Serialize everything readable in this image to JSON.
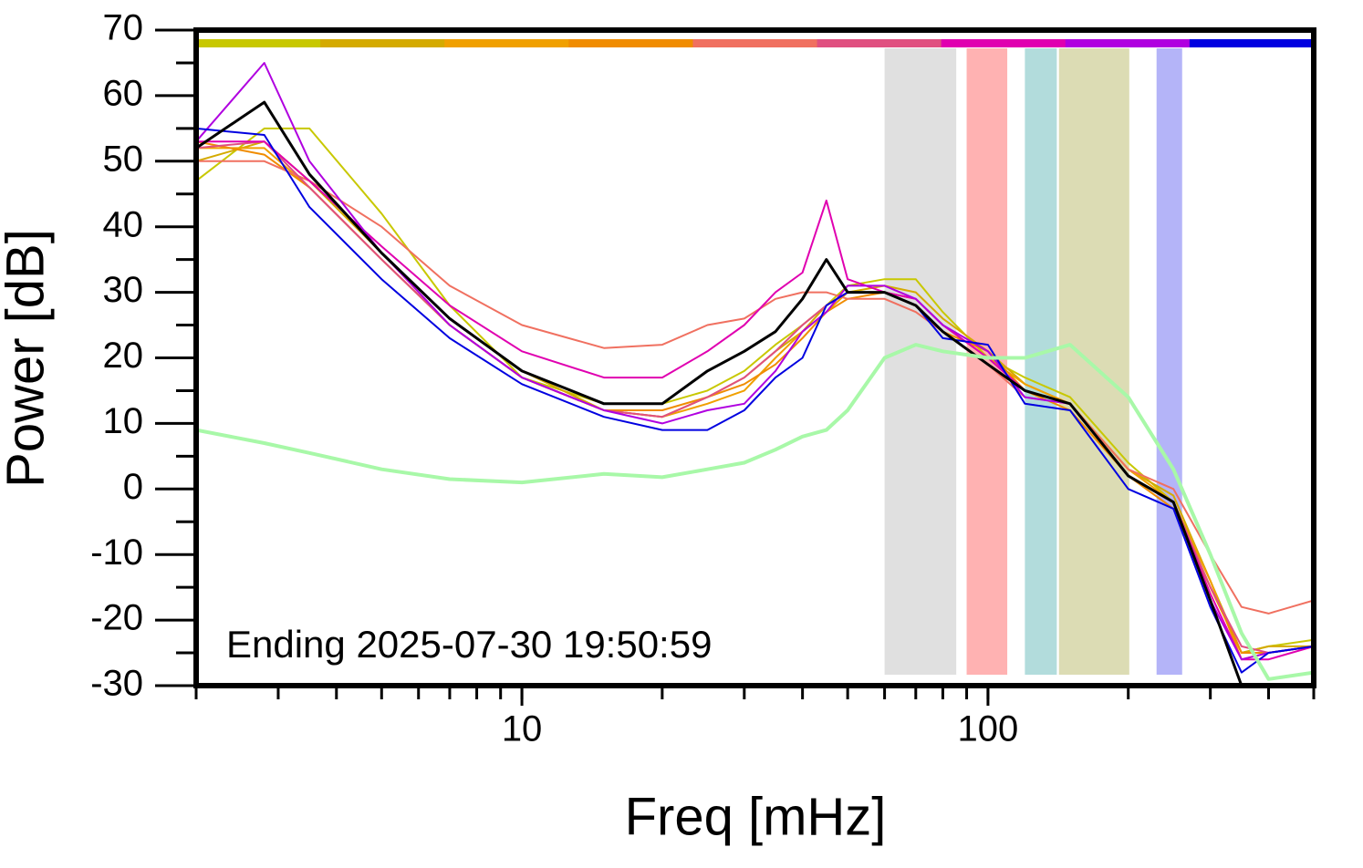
{
  "chart_data": {
    "type": "line",
    "ylabel": "Power [dB]",
    "xlabel": "Freq [mHz]",
    "annotation": "Ending 2025-07-30 19:50:59",
    "xscale": "log",
    "xlim": [
      2,
      500
    ],
    "ylim": [
      -30,
      70
    ],
    "xticks": [
      10,
      100
    ],
    "yticks": [
      -30,
      -20,
      -10,
      0,
      10,
      20,
      30,
      40,
      50,
      60,
      70
    ],
    "x": [
      2,
      2.8,
      3.5,
      5,
      7,
      10,
      15,
      20,
      25,
      30,
      35,
      40,
      45,
      50,
      60,
      70,
      80,
      100,
      120,
      150,
      200,
      250,
      300,
      350,
      400,
      500
    ],
    "bands": [
      {
        "x": [
          60,
          85.5
        ],
        "color": "#e0e0e0"
      },
      {
        "x": [
          90,
          110
        ],
        "color": "#ffb2b2"
      },
      {
        "x": [
          120,
          140.5
        ],
        "color": "#b2dcdc"
      },
      {
        "x": [
          142,
          201
        ],
        "color": "#dcdcb4"
      },
      {
        "x": [
          230,
          261
        ],
        "color": "#b4b4f8"
      }
    ],
    "series": [
      {
        "color": "#c8c800",
        "values": [
          47,
          55,
          55,
          42,
          28,
          17,
          13,
          13,
          15,
          18,
          22,
          25,
          28,
          31,
          32,
          32,
          27,
          20,
          17,
          14,
          4,
          -2,
          -15,
          -25,
          -24,
          -23
        ]
      },
      {
        "color": "#d4aa00",
        "values": [
          50,
          53,
          47,
          36,
          26,
          18,
          12,
          11,
          14,
          17,
          21,
          24,
          28,
          30,
          31,
          30,
          26,
          21,
          16,
          13,
          3,
          -1,
          -14,
          -25,
          -24,
          -24
        ]
      },
      {
        "color": "#f0a000",
        "values": [
          52,
          52,
          46,
          35,
          25,
          17,
          12,
          11,
          13,
          15,
          20,
          24,
          27,
          30,
          30,
          29,
          25,
          20,
          16,
          13,
          3,
          -2,
          -14,
          -26,
          -25,
          -24
        ]
      },
      {
        "color": "#f08c00",
        "values": [
          53,
          51,
          46,
          35,
          25,
          17,
          12,
          12,
          14,
          16,
          19,
          23,
          27,
          29,
          30,
          28,
          24,
          21,
          15,
          12,
          2,
          -3,
          -15,
          -25,
          -25,
          -24
        ]
      },
      {
        "color": "#f07060",
        "values": [
          50,
          50,
          47,
          40,
          31,
          25,
          21.5,
          22,
          25,
          26,
          29,
          30,
          30,
          29,
          29,
          27,
          24,
          19,
          14,
          13,
          3,
          0,
          -10,
          -18,
          -19,
          -17
        ]
      },
      {
        "color": "#e05080",
        "values": [
          52,
          53,
          46,
          35,
          25,
          17,
          12,
          11,
          14,
          17,
          21,
          25,
          28,
          30,
          30,
          29,
          25,
          20,
          15,
          13,
          2,
          -2,
          -15,
          -24,
          -25,
          -24
        ]
      },
      {
        "color": "#e000b0",
        "values": [
          53,
          53,
          47,
          37,
          28,
          21,
          17,
          17,
          21,
          25,
          30,
          33,
          44,
          32,
          30,
          29,
          25,
          20,
          15,
          13,
          2,
          -2,
          -16,
          -26,
          -26,
          -24
        ]
      },
      {
        "color": "#b000e0",
        "values": [
          53,
          65,
          50,
          36,
          25,
          17,
          12,
          10,
          12,
          13,
          18,
          24,
          27,
          31,
          31,
          29,
          25,
          21,
          14,
          13,
          2,
          -2,
          -17,
          -26,
          -25,
          -24
        ]
      },
      {
        "color": "#0000e0",
        "values": [
          55,
          54,
          43,
          32,
          23,
          16,
          11,
          9,
          9,
          12,
          17,
          20,
          28,
          30,
          30,
          28,
          23,
          22,
          13,
          12,
          0,
          -3,
          -18,
          -28,
          -25,
          -24
        ]
      },
      {
        "color": "#000000",
        "values": [
          52,
          59,
          48,
          36,
          26,
          18,
          13,
          13,
          18,
          21,
          24,
          29,
          35,
          30,
          30,
          28,
          24,
          19,
          15,
          13,
          2,
          -2,
          -17,
          -30,
          null,
          null
        ]
      },
      {
        "color": "#a8f8a8",
        "values": [
          9,
          7,
          5.5,
          3,
          1.5,
          1,
          2.3,
          1.8,
          3,
          4,
          6,
          8,
          9,
          12,
          20,
          22,
          21,
          20,
          20,
          22,
          14,
          3,
          -10,
          -22,
          -29,
          -28
        ]
      }
    ]
  }
}
